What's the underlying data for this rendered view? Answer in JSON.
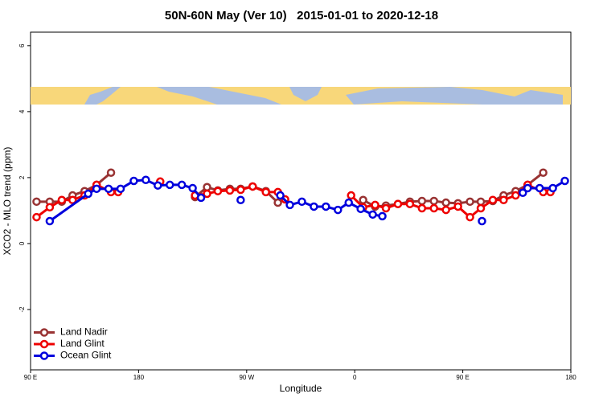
{
  "chart_data": {
    "type": "line",
    "title": "50N-60N May (Ver 10)   2015-01-01 to 2020-12-18",
    "x_label": "Longitude",
    "y_label": "XCO2 - MLO trend (ppm)",
    "xlim": [
      90,
      540
    ],
    "ylim": [
      -3.83,
      6.41
    ],
    "xticks": [
      {
        "value": 90,
        "label": "90 E"
      },
      180,
      {
        "value": 270,
        "label": "90 W"
      },
      {
        "value": 360,
        "label": "0"
      },
      {
        "value": 450,
        "label": "90 E"
      },
      {
        "value": 540,
        "label": "180"
      }
    ],
    "yticks": [
      -2,
      0,
      2,
      4,
      6
    ],
    "legend": "bottom-left",
    "series": [
      {
        "name": "Land Nadir",
        "color": "#993333",
        "x": [
          95,
          106,
          116,
          125,
          135,
          145,
          157,
          190,
          227,
          237,
          246,
          256,
          265,
          275,
          286,
          296,
          330,
          367,
          377,
          386,
          396,
          406,
          416,
          426,
          436,
          446,
          456,
          465,
          475,
          484,
          494,
          504,
          517
        ],
        "values": [
          1.27,
          1.27,
          1.27,
          1.46,
          1.59,
          1.78,
          2.15,
          null,
          1.41,
          1.71,
          1.61,
          1.66,
          1.66,
          1.73,
          1.59,
          1.24,
          null,
          1.32,
          1.12,
          1.15,
          1.2,
          1.27,
          1.29,
          1.29,
          1.24,
          1.22,
          1.27,
          1.27,
          1.29,
          1.46,
          1.59,
          1.78,
          2.15
        ]
      },
      {
        "name": "Land Glint",
        "color": "#ee0000",
        "x": [
          95,
          106,
          116,
          125,
          135,
          145,
          157,
          163,
          180,
          198,
          212,
          227,
          237,
          246,
          256,
          265,
          275,
          286,
          296,
          302,
          330,
          357,
          367,
          377,
          386,
          396,
          406,
          416,
          426,
          436,
          446,
          456,
          465,
          475,
          484,
          494,
          504,
          517,
          523
        ],
        "values": [
          0.8,
          1.1,
          1.32,
          1.32,
          1.46,
          1.78,
          1.56,
          1.56,
          null,
          1.88,
          null,
          1.46,
          1.51,
          1.59,
          1.61,
          1.63,
          1.73,
          1.56,
          1.56,
          1.34,
          null,
          1.46,
          1.1,
          1.17,
          1.07,
          1.2,
          1.2,
          1.07,
          1.07,
          1.02,
          1.12,
          0.8,
          1.07,
          1.32,
          1.32,
          1.46,
          1.78,
          1.56,
          1.56
        ]
      },
      {
        "name": "Ocean Glint",
        "color": "#0000dd",
        "x": [
          106,
          138,
          145,
          155,
          165,
          176,
          186,
          196,
          206,
          216,
          225,
          232,
          250,
          265,
          280,
          298,
          306,
          316,
          326,
          336,
          346,
          355,
          365,
          375,
          383,
          420,
          466,
          480,
          500,
          504,
          514,
          525,
          535
        ],
        "values": [
          0.68,
          1.51,
          1.66,
          1.66,
          1.66,
          1.9,
          1.93,
          1.76,
          1.78,
          1.78,
          1.68,
          1.39,
          null,
          1.32,
          null,
          1.46,
          1.17,
          1.27,
          1.12,
          1.12,
          1.02,
          1.24,
          1.05,
          0.88,
          0.83,
          null,
          0.68,
          null,
          1.54,
          1.68,
          1.68,
          1.68,
          1.9
        ]
      }
    ]
  }
}
